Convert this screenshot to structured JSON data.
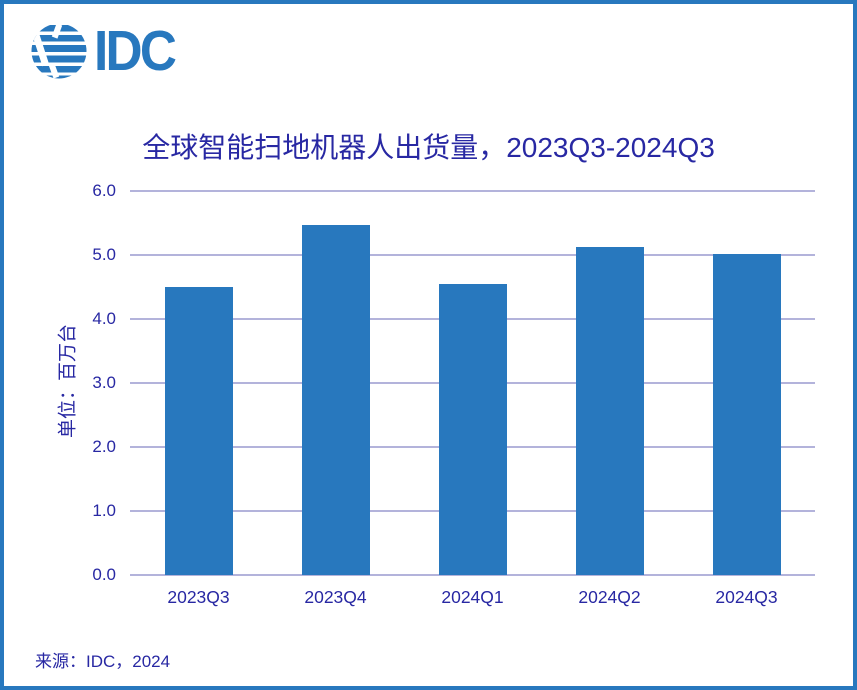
{
  "logo": {
    "text": "IDC"
  },
  "chart_data": {
    "type": "bar",
    "title": "全球智能扫地机器人出货量，2023Q3-2024Q3",
    "ylabel": "单位：百万台",
    "xlabel": "",
    "categories": [
      "2023Q3",
      "2023Q4",
      "2024Q1",
      "2024Q2",
      "2024Q3"
    ],
    "values": [
      4.5,
      5.47,
      4.55,
      5.12,
      5.01
    ],
    "ylim": [
      0,
      6
    ],
    "ytick_labels": [
      "0.0",
      "1.0",
      "2.0",
      "3.0",
      "4.0",
      "5.0",
      "6.0"
    ],
    "grid": true,
    "legend": false
  },
  "source": {
    "text": "来源：IDC，2024"
  },
  "colors": {
    "brand_blue": "#2878BE",
    "bar_blue": "#2878BE",
    "gridline": "#B3B3DB",
    "navy_text": "#2828A3",
    "background": "#FFFFFF"
  }
}
